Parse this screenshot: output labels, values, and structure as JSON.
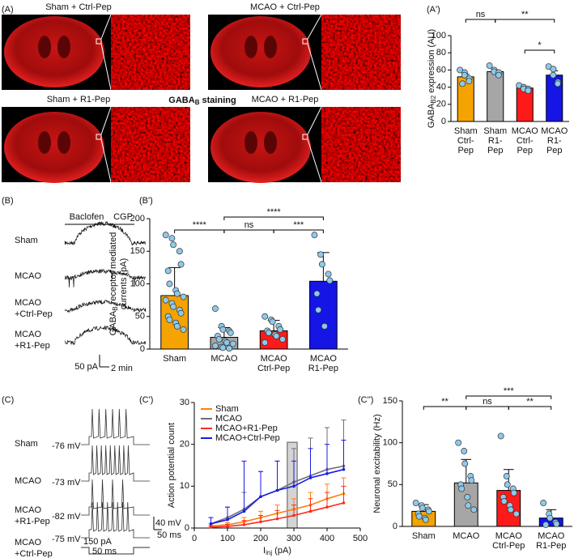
{
  "panels": {
    "A": "(A)",
    "A2": "(A')",
    "B": "(B)",
    "B2": "(B')",
    "C": "(C)",
    "C2": "(C')",
    "C3": "(C'')"
  },
  "staining": {
    "conditions": [
      "Sham + Ctrl-Pep",
      "MCAO + Ctrl-Pep",
      "Sham + R1-Pep",
      "MCAO + R1-Pep"
    ],
    "label": [
      "GABA",
      "B",
      " staining"
    ]
  },
  "traces_B": {
    "drugs": [
      "Baclofen",
      "CGP"
    ],
    "groups": [
      [
        "Sham"
      ],
      [
        "MCAO"
      ],
      [
        "MCAO",
        "+Ctrl-Pep"
      ],
      [
        "MCAO",
        "+R1-Pep"
      ]
    ],
    "scale": [
      "50 pA",
      "2 min"
    ]
  },
  "traces_C": {
    "groups": [
      [
        "Sham"
      ],
      [
        "MCAO"
      ],
      [
        "MCAO",
        "+R1-Pep"
      ],
      [
        "MCAO",
        "+Ctrl-Pep"
      ]
    ],
    "potentials": [
      "-76 mV",
      "-73 mV",
      "-82 mV",
      "-75 mV"
    ],
    "scale": [
      "40 mV",
      "50 ms"
    ],
    "stimulus": [
      "150 pA",
      "50 ms"
    ]
  },
  "chart_data": [
    {
      "type": "bar",
      "ylabel": [
        [
          "GABA",
          "B2",
          " expression (AU)"
        ]
      ],
      "categories": [
        [
          "Sham",
          "Ctrl-",
          "Pep"
        ],
        [
          "Sham",
          "R1-",
          "Pep"
        ],
        [
          "MCAO",
          "Ctrl-",
          "Pep"
        ],
        [
          "MCAO",
          "R1-",
          "Pep"
        ]
      ],
      "values": [
        52,
        58,
        39,
        54
      ],
      "errors": [
        3,
        2,
        2,
        5
      ],
      "points": [
        [
          60,
          57,
          54,
          50,
          47,
          44
        ],
        [
          65,
          60,
          58,
          57,
          54
        ],
        [
          42,
          40,
          38,
          38,
          36
        ],
        [
          64,
          61,
          54,
          46,
          44
        ]
      ],
      "colors": [
        "#f5a300",
        "#a6a6a6",
        "#ff1a1a",
        "#1515e6"
      ],
      "ylim": [
        0,
        100
      ],
      "yticks": [
        0,
        20,
        40,
        60,
        80,
        100
      ],
      "significance": [
        {
          "from": 0,
          "to": 1,
          "label": "ns"
        },
        {
          "from": 1,
          "to": 3,
          "label": "**"
        },
        {
          "from": 2,
          "to": 3,
          "label": "*"
        }
      ]
    },
    {
      "type": "bar",
      "ylabel": [
        [
          "GABA",
          "B",
          " receptor mediated"
        ],
        [
          "currents (pA)"
        ]
      ],
      "categories": [
        [
          "Sham"
        ],
        [
          "MCAO"
        ],
        [
          "MCAO",
          "Ctrl-Pep"
        ],
        [
          "MCAO",
          "R1-Pep"
        ]
      ],
      "values": [
        82,
        18,
        28,
        104
      ],
      "errors": [
        43,
        15,
        16,
        44
      ],
      "points": [
        [
          175,
          170,
          160,
          150,
          130,
          120,
          100,
          90,
          85,
          80,
          75,
          70,
          65,
          60,
          55,
          50,
          45,
          40,
          35,
          30
        ],
        [
          62,
          35,
          30,
          28,
          25,
          20,
          15,
          12,
          10,
          8,
          5,
          3,
          2,
          1
        ],
        [
          50,
          45,
          42,
          35,
          30,
          28,
          25,
          22,
          20,
          15,
          10
        ],
        [
          175,
          145,
          130,
          115,
          105,
          85,
          60,
          35
        ]
      ],
      "colors": [
        "#f5a300",
        "#a6a6a6",
        "#ff1a1a",
        "#1515e6"
      ],
      "ylim": [
        0,
        200
      ],
      "yticks": [
        0,
        50,
        100,
        150,
        200
      ],
      "significance": [
        {
          "from": 0,
          "to": 1,
          "label": "****"
        },
        {
          "from": 1,
          "to": 3,
          "label": "****"
        },
        {
          "from": 1,
          "to": 2,
          "label": "ns"
        },
        {
          "from": 2,
          "to": 3,
          "label": "***"
        }
      ]
    },
    {
      "type": "line",
      "xlabel": [
        [
          "I",
          "inj",
          " (pA)"
        ]
      ],
      "ylabel": [
        [
          "Action potential count"
        ]
      ],
      "x": [
        50,
        100,
        150,
        200,
        250,
        300,
        350,
        400,
        450
      ],
      "series": [
        {
          "name": "Sham",
          "color": "#ff7f0e",
          "values": [
            0.5,
            0.8,
            1.5,
            2.5,
            3.5,
            4.5,
            5.5,
            7,
            8.2
          ],
          "errors": [
            0.5,
            0.5,
            1,
            1.5,
            2,
            2.5,
            3,
            3.5,
            3.8
          ]
        },
        {
          "name": "MCAO",
          "color": "#6e6e7a",
          "values": [
            1,
            2.5,
            4.5,
            7.5,
            9,
            11,
            12.5,
            14,
            14.8
          ],
          "errors": [
            1.5,
            2.5,
            4,
            6,
            7,
            8,
            9,
            10,
            11
          ]
        },
        {
          "name": "MCAO+R1-Pep",
          "color": "#ff2a1a",
          "values": [
            0.2,
            0.4,
            0.8,
            1.5,
            2.2,
            3,
            4,
            5,
            6
          ],
          "errors": [
            0.3,
            0.5,
            1,
            1.5,
            2,
            2.5,
            3,
            3.5,
            4
          ]
        },
        {
          "name": "MCAO+Ctrl-Pep",
          "color": "#1a1ae6",
          "values": [
            1,
            2,
            4,
            7.5,
            9,
            10,
            12,
            13,
            14
          ],
          "errors": [
            1.5,
            3,
            12,
            6,
            7,
            6,
            7,
            7,
            7
          ]
        }
      ],
      "highlight": {
        "x": [
          280,
          310
        ],
        "top": 20.5
      },
      "xlim": [
        0,
        500
      ],
      "xticks": [
        0,
        100,
        200,
        300,
        400,
        500
      ],
      "ylim": [
        0,
        30
      ],
      "yticks": [
        0,
        10,
        20,
        30
      ],
      "legend": "upper left"
    },
    {
      "type": "bar",
      "ylabel": [
        [
          "Neuronal excitability (Hz)"
        ]
      ],
      "categories": [
        [
          "Sham"
        ],
        [
          "MCAO"
        ],
        [
          "MCAO",
          "Ctrl-Pep"
        ],
        [
          "MCAO",
          "R1-Pep"
        ]
      ],
      "values": [
        18,
        52,
        43,
        10
      ],
      "errors": [
        8,
        28,
        25,
        10
      ],
      "points": [
        [
          28,
          25,
          22,
          20,
          18,
          15,
          12,
          10,
          8
        ],
        [
          100,
          90,
          75,
          60,
          55,
          50,
          45,
          35,
          25,
          20
        ],
        [
          108,
          60,
          50,
          45,
          40,
          35,
          30,
          25,
          20,
          15
        ],
        [
          28,
          15,
          10,
          5,
          3,
          2
        ]
      ],
      "colors": [
        "#f5a300",
        "#a6a6a6",
        "#ff1a1a",
        "#1515e6"
      ],
      "ylim": [
        0,
        150
      ],
      "yticks": [
        0,
        50,
        100,
        150
      ],
      "significance": [
        {
          "from": 0,
          "to": 1,
          "label": "**"
        },
        {
          "from": 1,
          "to": 3,
          "label": "***"
        },
        {
          "from": 1,
          "to": 2,
          "label": "ns"
        },
        {
          "from": 2,
          "to": 3,
          "label": "**"
        }
      ]
    }
  ]
}
